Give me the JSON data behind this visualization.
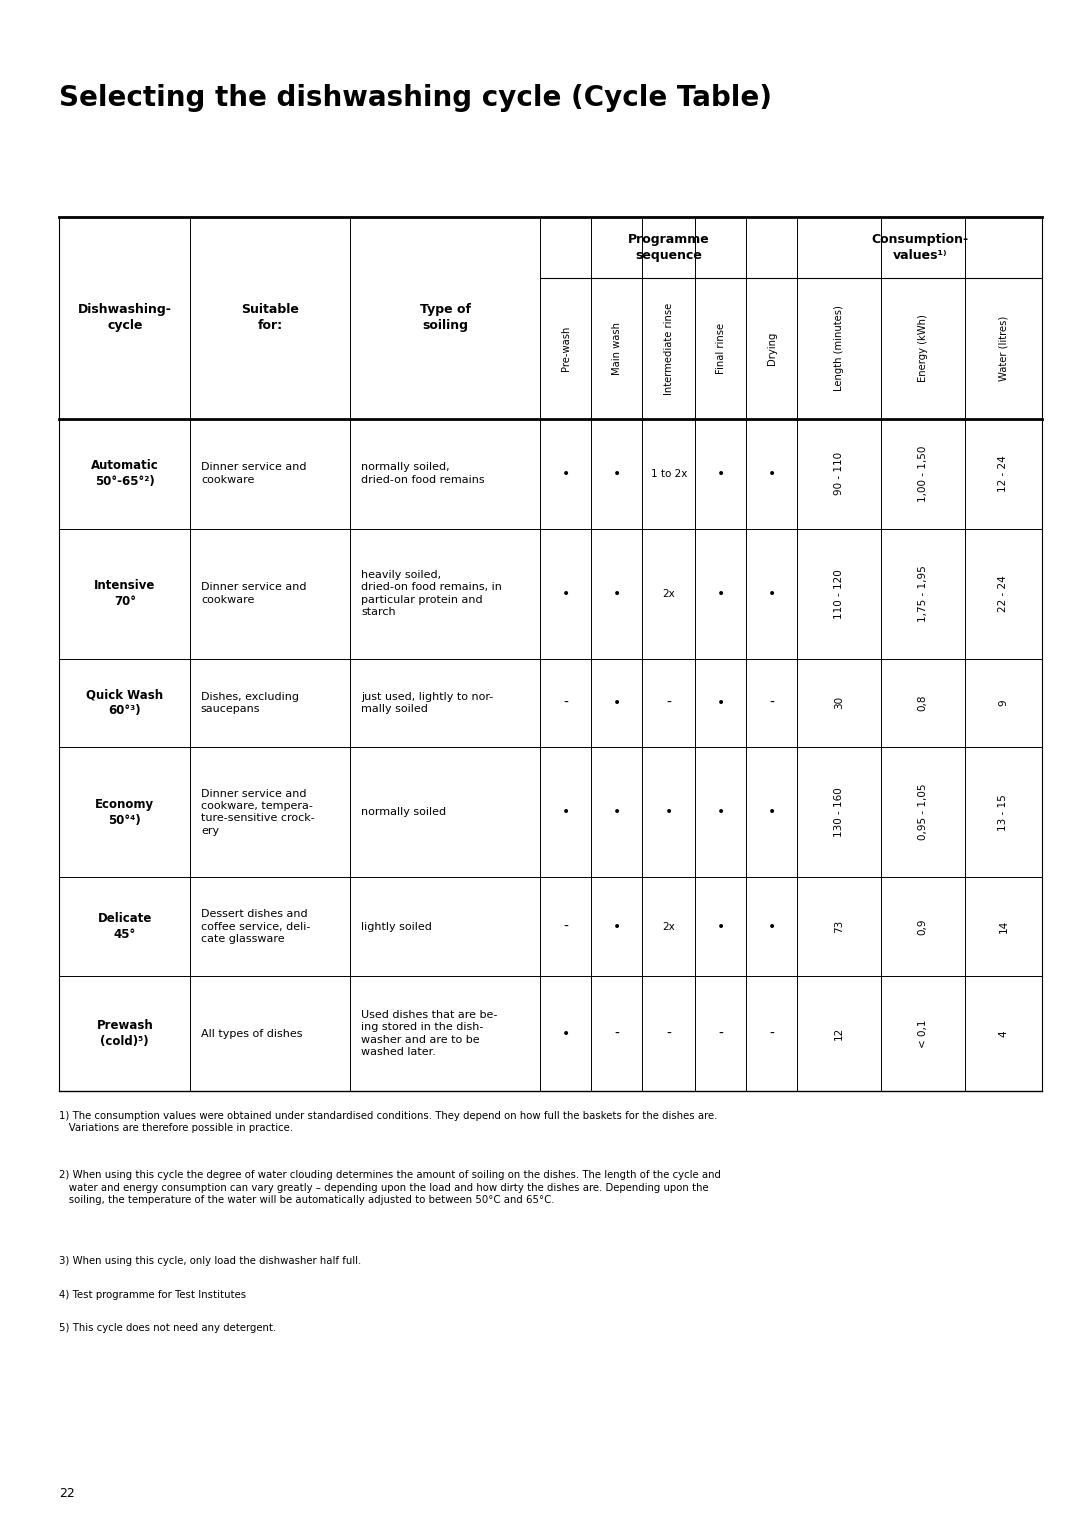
{
  "title": "Selecting the dishwashing cycle (Cycle Table)",
  "page_number": "22",
  "col_headers_rotated": [
    "Pre-wash",
    "Main wash",
    "Intermediate rinse",
    "Final rinse",
    "Drying",
    "Length (minutes)",
    "Energy (kWh)",
    "Water (litres)"
  ],
  "rows": [
    {
      "cycle": "Automatic\n50°-65°²)",
      "suitable": "Dinner service and\ncookware",
      "soiling": "normally soiled,\ndried-on food remains",
      "pre_wash": "•",
      "main_wash": "•",
      "int_rinse": "1 to 2x",
      "final_rinse": "•",
      "drying": "•",
      "length": "90 - 110",
      "energy": "1,00 - 1,50",
      "water": "12 - 24"
    },
    {
      "cycle": "Intensive\n70°",
      "suitable": "Dinner service and\ncookware",
      "soiling": "heavily soiled,\ndried-on food remains, in\nparticular protein and\nstarch",
      "pre_wash": "•",
      "main_wash": "•",
      "int_rinse": "2x",
      "final_rinse": "•",
      "drying": "•",
      "length": "110 - 120",
      "energy": "1,75 - 1,95",
      "water": "22 - 24"
    },
    {
      "cycle": "Quick Wash\n60°³)",
      "suitable": "Dishes, excluding\nsaucepans",
      "soiling": "just used, lightly to nor-\nmally soiled",
      "pre_wash": "-",
      "main_wash": "•",
      "int_rinse": "-",
      "final_rinse": "•",
      "drying": "-",
      "length": "30",
      "energy": "0,8",
      "water": "9"
    },
    {
      "cycle": "Economy\n50°⁴)",
      "suitable": "Dinner service and\ncookware, tempera-\nture-sensitive crock-\nery",
      "soiling": "normally soiled",
      "pre_wash": "•",
      "main_wash": "•",
      "int_rinse": "•",
      "final_rinse": "•",
      "drying": "•",
      "length": "130 - 160",
      "energy": "0,95 - 1,05",
      "water": "13 - 15"
    },
    {
      "cycle": "Delicate\n45°",
      "suitable": "Dessert dishes and\ncoffee service, deli-\ncate glassware",
      "soiling": "lightly soiled",
      "pre_wash": "-",
      "main_wash": "•",
      "int_rinse": "2x",
      "final_rinse": "•",
      "drying": "•",
      "length": "73",
      "energy": "0,9",
      "water": "14"
    },
    {
      "cycle": "Prewash\n(cold)⁵)",
      "suitable": "All types of dishes",
      "soiling": "Used dishes that are be-\ning stored in the dish-\nwasher and are to be\nwashed later.",
      "pre_wash": "•",
      "main_wash": "-",
      "int_rinse": "-",
      "final_rinse": "-",
      "drying": "-",
      "length": "12",
      "energy": "< 0,1",
      "water": "4"
    }
  ],
  "footnotes": [
    "1) The consumption values were obtained under standardised conditions. They depend on how full the baskets for the dishes are.\n   Variations are therefore possible in practice.",
    "2) When using this cycle the degree of water clouding determines the amount of soiling on the dishes. The length of the cycle and\n   water and energy consumption can vary greatly – depending upon the load and how dirty the dishes are. Depending upon the\n   soiling, the temperature of the water will be automatically adjusted to between 50°C and 65°C.",
    "3) When using this cycle, only load the dishwasher half full.",
    "4) Test programme for Test Institutes",
    "5) This cycle does not need any detergent."
  ],
  "bg_color": "#ffffff",
  "text_color": "#000000"
}
